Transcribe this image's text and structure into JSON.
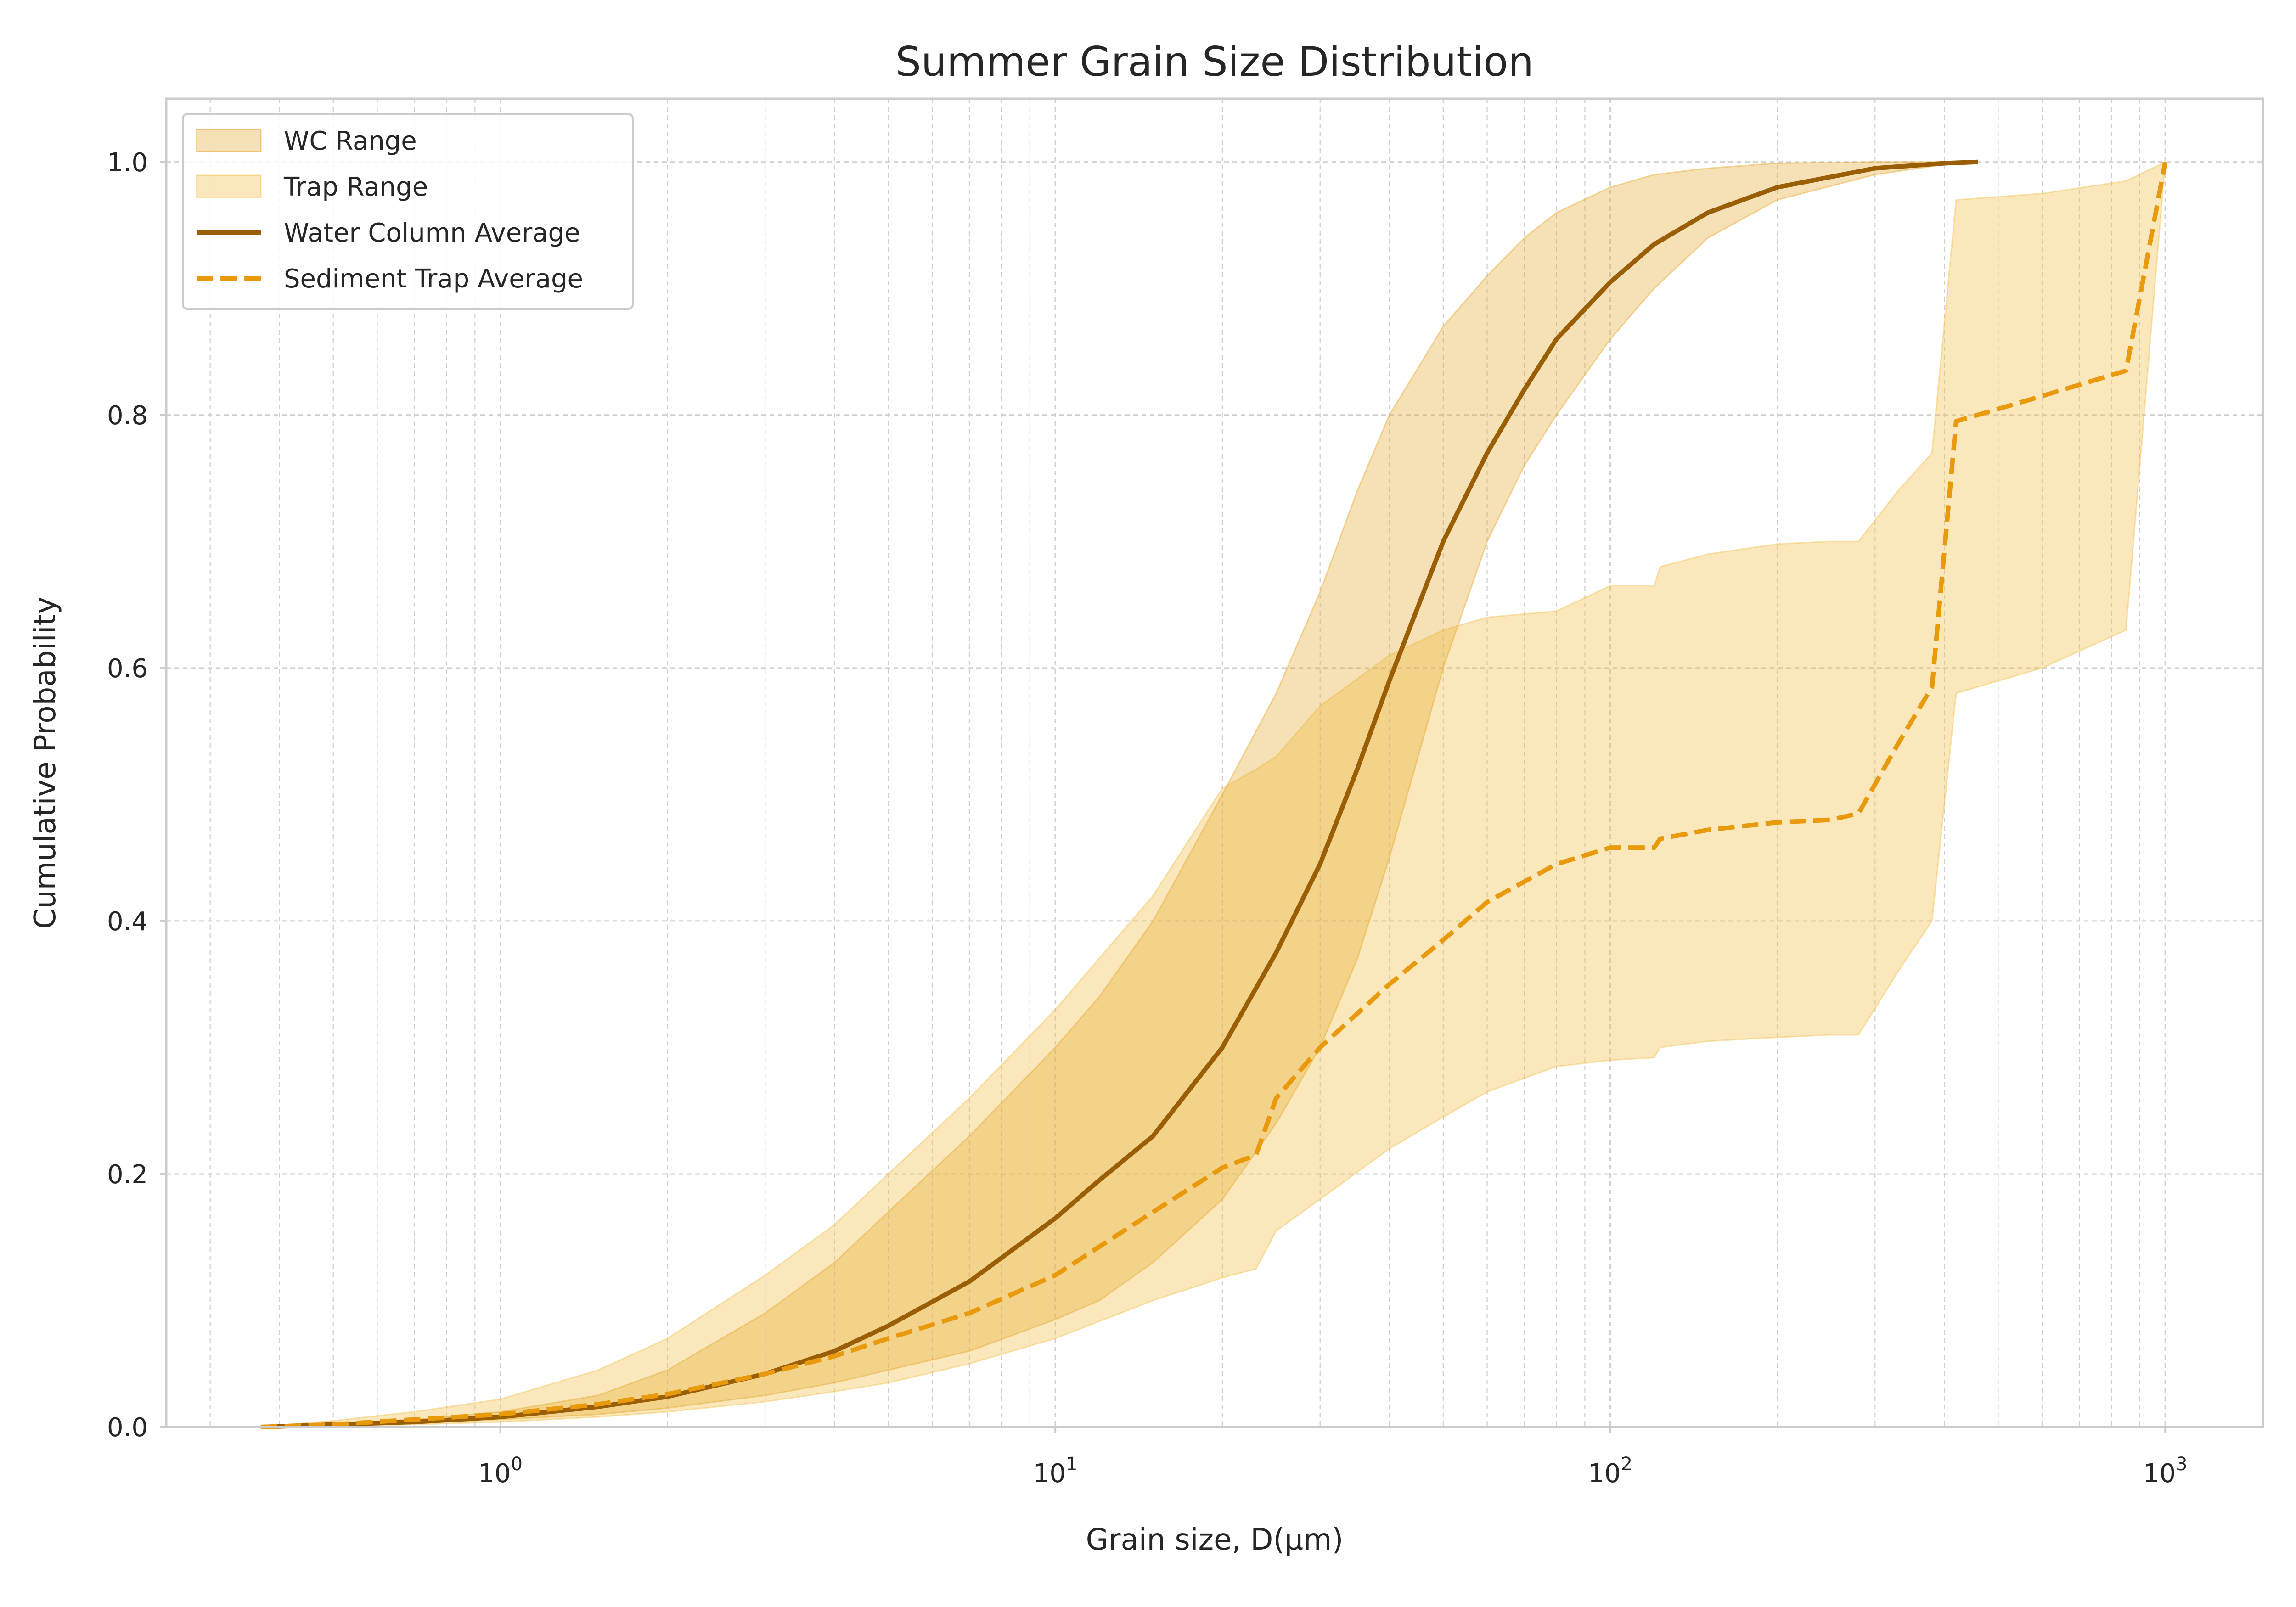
{
  "chart_data": {
    "type": "line",
    "title": "Summer Grain Size Distribution",
    "xlabel": "Grain size, D(μm)",
    "ylabel": "Cumulative Probability",
    "xscale": "log",
    "xlim": [
      0.25,
      1500
    ],
    "ylim": [
      0,
      1.05
    ],
    "grid": true,
    "legend_position": "top-left",
    "x_ticks": [
      {
        "value": 1,
        "label": "10",
        "exp": "0"
      },
      {
        "value": 10,
        "label": "10",
        "exp": "1"
      },
      {
        "value": 100,
        "label": "10",
        "exp": "2"
      },
      {
        "value": 1000,
        "label": "10",
        "exp": "3"
      }
    ],
    "y_ticks": [
      "0.0",
      "0.2",
      "0.4",
      "0.6",
      "0.8",
      "1.0"
    ],
    "colors": {
      "wc_fill": "#e6a82e",
      "trap_fill": "#f2c24e",
      "wc_line": "#9a5e05",
      "trap_line": "#e89a0c",
      "grid": "#cfcfcf",
      "spine": "#cccccc"
    },
    "series": [
      {
        "name": "WC Range",
        "kind": "range",
        "x": [
          0.37,
          0.5,
          0.7,
          1.0,
          1.5,
          2,
          3,
          4,
          5,
          7,
          10,
          12,
          15,
          20,
          25,
          30,
          35,
          40,
          50,
          60,
          70,
          80,
          100,
          120,
          150,
          200,
          300,
          400,
          460
        ],
        "lower": [
          0,
          0.001,
          0.003,
          0.006,
          0.01,
          0.015,
          0.025,
          0.035,
          0.045,
          0.06,
          0.085,
          0.1,
          0.13,
          0.18,
          0.24,
          0.3,
          0.37,
          0.45,
          0.6,
          0.7,
          0.76,
          0.8,
          0.86,
          0.9,
          0.94,
          0.97,
          0.99,
          0.998,
          1.0
        ],
        "upper": [
          0,
          0.003,
          0.006,
          0.012,
          0.025,
          0.045,
          0.09,
          0.13,
          0.17,
          0.23,
          0.3,
          0.34,
          0.4,
          0.5,
          0.58,
          0.66,
          0.74,
          0.8,
          0.87,
          0.91,
          0.94,
          0.96,
          0.98,
          0.99,
          0.995,
          0.999,
          1.0,
          1.0,
          1.0
        ]
      },
      {
        "name": "Trap Range",
        "kind": "range",
        "x": [
          0.37,
          0.5,
          0.7,
          1.0,
          1.5,
          2,
          3,
          4,
          5,
          7,
          10,
          15,
          20,
          23,
          25,
          30,
          40,
          50,
          60,
          80,
          100,
          120,
          123,
          150,
          200,
          250,
          280,
          330,
          380,
          420,
          600,
          850,
          1000
        ],
        "lower": [
          0,
          0.001,
          0.002,
          0.004,
          0.008,
          0.012,
          0.02,
          0.028,
          0.035,
          0.05,
          0.07,
          0.1,
          0.118,
          0.125,
          0.155,
          0.18,
          0.22,
          0.245,
          0.265,
          0.285,
          0.29,
          0.292,
          0.3,
          0.305,
          0.308,
          0.31,
          0.31,
          0.36,
          0.4,
          0.58,
          0.6,
          0.63,
          1.0
        ],
        "upper": [
          0,
          0.005,
          0.012,
          0.022,
          0.045,
          0.07,
          0.12,
          0.16,
          0.2,
          0.26,
          0.33,
          0.42,
          0.505,
          0.52,
          0.53,
          0.57,
          0.61,
          0.63,
          0.64,
          0.645,
          0.665,
          0.665,
          0.68,
          0.69,
          0.698,
          0.7,
          0.7,
          0.74,
          0.77,
          0.97,
          0.975,
          0.985,
          1.0
        ]
      },
      {
        "name": "Water Column Average",
        "kind": "line",
        "x": [
          0.37,
          0.5,
          0.7,
          1.0,
          1.5,
          2,
          3,
          4,
          5,
          7,
          10,
          12,
          15,
          20,
          25,
          30,
          35,
          40,
          50,
          60,
          70,
          80,
          100,
          120,
          150,
          200,
          300,
          400,
          460
        ],
        "values": [
          0,
          0.002,
          0.004,
          0.008,
          0.016,
          0.024,
          0.042,
          0.06,
          0.08,
          0.115,
          0.165,
          0.195,
          0.23,
          0.3,
          0.375,
          0.445,
          0.52,
          0.59,
          0.7,
          0.77,
          0.82,
          0.86,
          0.905,
          0.935,
          0.96,
          0.98,
          0.995,
          0.999,
          1.0
        ]
      },
      {
        "name": "Sediment Trap Average",
        "kind": "dashed",
        "x": [
          0.37,
          0.5,
          0.7,
          1.0,
          1.5,
          2,
          3,
          4,
          5,
          7,
          10,
          15,
          20,
          23,
          25,
          30,
          40,
          50,
          60,
          80,
          100,
          120,
          123,
          150,
          200,
          250,
          280,
          330,
          380,
          420,
          600,
          850,
          1000
        ],
        "values": [
          0,
          0.002,
          0.006,
          0.01,
          0.018,
          0.026,
          0.042,
          0.056,
          0.07,
          0.09,
          0.12,
          0.17,
          0.205,
          0.215,
          0.26,
          0.3,
          0.35,
          0.385,
          0.415,
          0.445,
          0.458,
          0.458,
          0.465,
          0.472,
          0.478,
          0.48,
          0.485,
          0.54,
          0.585,
          0.795,
          0.815,
          0.835,
          1.0
        ]
      }
    ]
  }
}
